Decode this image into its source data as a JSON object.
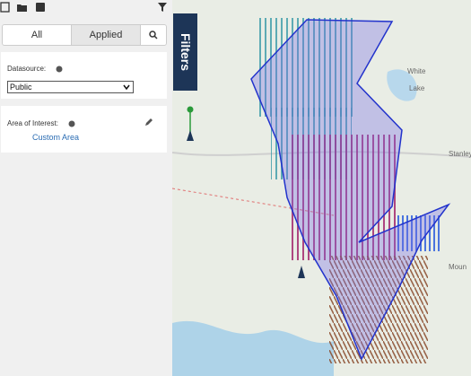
{
  "tabs": {
    "all": "All",
    "applied": "Applied"
  },
  "filters_tab": "Filters",
  "datasource": {
    "label": "Datasource:",
    "value": "Public"
  },
  "area_of_interest": {
    "label": "Area of Interest:",
    "value": "Custom Area"
  },
  "map_labels": {
    "stanley": "Stanley",
    "white": "White",
    "lake": "Lake",
    "mount": "Moun"
  }
}
